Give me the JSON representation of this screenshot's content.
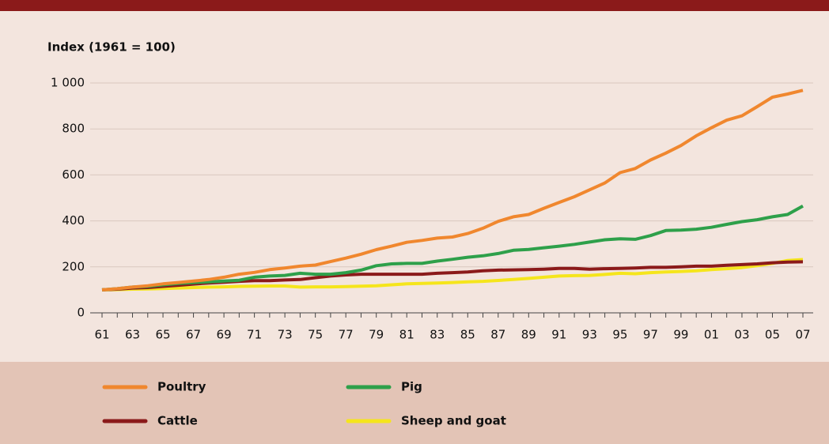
{
  "chart_data": {
    "type": "line",
    "y_label": "Index (1961 = 100)",
    "categories": [
      "61",
      null,
      "63",
      null,
      "65",
      null,
      "67",
      null,
      "69",
      null,
      "71",
      null,
      "73",
      null,
      "75",
      null,
      "77",
      null,
      "79",
      null,
      "81",
      null,
      "83",
      null,
      "85",
      null,
      "87",
      null,
      "89",
      null,
      "91",
      null,
      "93",
      null,
      "95",
      null,
      "97",
      null,
      "99",
      null,
      "01",
      null,
      "03",
      null,
      "05",
      null,
      "07"
    ],
    "series": [
      {
        "name": "Poultry",
        "color": "#f0872e",
        "values": [
          100,
          105,
          112,
          118,
          126,
          132,
          138,
          145,
          155,
          168,
          176,
          188,
          195,
          203,
          208,
          223,
          238,
          255,
          275,
          290,
          307,
          315,
          325,
          330,
          345,
          368,
          398,
          418,
          428,
          455,
          480,
          505,
          535,
          565,
          610,
          628,
          665,
          695,
          728,
          770,
          805,
          838,
          857,
          897,
          938,
          952,
          968
        ]
      },
      {
        "name": "Pig",
        "color": "#2ea04a",
        "values": [
          100,
          105,
          112,
          115,
          122,
          128,
          132,
          135,
          138,
          142,
          155,
          160,
          163,
          172,
          168,
          168,
          175,
          186,
          205,
          213,
          215,
          215,
          225,
          233,
          242,
          248,
          258,
          272,
          276,
          283,
          290,
          298,
          308,
          318,
          322,
          320,
          336,
          358,
          360,
          364,
          372,
          385,
          397,
          405,
          418,
          428,
          465
        ]
      },
      {
        "name": "Cattle",
        "color": "#8b1a1a",
        "values": [
          100,
          103,
          108,
          110,
          115,
          120,
          125,
          130,
          133,
          137,
          140,
          140,
          143,
          145,
          153,
          160,
          165,
          168,
          168,
          168,
          168,
          168,
          172,
          175,
          178,
          183,
          186,
          187,
          188,
          190,
          193,
          193,
          190,
          192,
          193,
          195,
          198,
          198,
          200,
          203,
          203,
          207,
          210,
          213,
          218,
          221,
          222
        ]
      },
      {
        "name": "Sheep and goat",
        "color": "#f5e51c",
        "values": [
          100,
          101,
          103,
          104,
          106,
          108,
          110,
          112,
          113,
          115,
          116,
          117,
          117,
          112,
          113,
          113,
          114,
          116,
          118,
          122,
          126,
          128,
          130,
          132,
          135,
          137,
          141,
          145,
          150,
          155,
          160,
          162,
          163,
          167,
          172,
          170,
          175,
          178,
          180,
          183,
          188,
          192,
          197,
          205,
          215,
          228,
          232
        ]
      }
    ],
    "ylim": [
      0,
      1000
    ],
    "yticks": [
      0,
      200,
      400,
      600,
      800,
      {
        "value": 1000,
        "label": "1 000"
      }
    ],
    "grid": true
  }
}
